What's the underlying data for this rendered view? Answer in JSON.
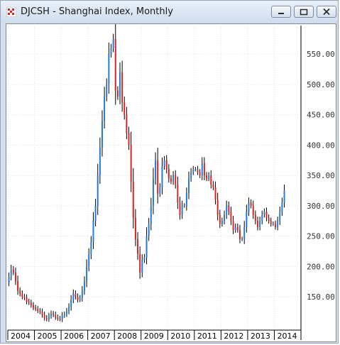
{
  "window": {
    "title": "DJCSH - Shanghai Index, Monthly",
    "controls": [
      "minimize-icon",
      "restore-icon",
      "close-icon"
    ]
  },
  "colors": {
    "up": "#1e78dc",
    "down": "#dc1e1e",
    "axis": "#000000"
  },
  "chart_data": {
    "type": "ohlc",
    "title": "DJCSH - Shanghai Index, Monthly",
    "xlabel": "",
    "ylabel": "",
    "ylim": [
      95,
      597
    ],
    "xlim": [
      2004.0,
      2015.0
    ],
    "y_ticks": [
      150,
      200,
      250,
      300,
      350,
      400,
      450,
      500,
      550
    ],
    "y_tick_labels": [
      "150.00",
      "200.00",
      "250.00",
      "300.00",
      "350.00",
      "400.00",
      "450.00",
      "500.00",
      "550.00"
    ],
    "x_ticks": [
      2004,
      2005,
      2006,
      2007,
      2008,
      2009,
      2010,
      2011,
      2012,
      2013,
      2014
    ],
    "x_tick_labels": [
      "2004",
      "2005",
      "2006",
      "2007",
      "2008",
      "2009",
      "2010",
      "2011",
      "2012",
      "2013",
      "2014"
    ],
    "grid": true,
    "frequency": "monthly",
    "close": [
      183,
      195,
      190,
      176,
      160,
      155,
      150,
      148,
      142,
      140,
      136,
      132,
      130,
      127,
      125,
      120,
      115,
      113,
      118,
      122,
      120,
      116,
      114,
      113,
      119,
      121,
      126,
      133,
      145,
      155,
      150,
      145,
      148,
      160,
      175,
      200,
      220,
      240,
      275,
      300,
      350,
      395,
      440,
      480,
      500,
      550,
      560,
      575,
      490,
      480,
      520,
      470,
      450,
      420,
      400,
      340,
      280,
      245,
      220,
      190,
      210,
      215,
      250,
      270,
      300,
      345,
      375,
      320,
      330,
      365,
      375,
      360,
      345,
      340,
      350,
      335,
      305,
      285,
      300,
      300,
      320,
      345,
      355,
      360,
      360,
      355,
      350,
      370,
      350,
      345,
      350,
      335,
      330,
      310,
      285,
      270,
      275,
      285,
      300,
      290,
      275,
      260,
      265,
      260,
      245,
      245,
      265,
      290,
      305,
      300,
      285,
      275,
      265,
      275,
      285,
      290,
      280,
      275,
      270,
      270,
      265,
      275,
      290,
      305,
      325
    ]
  }
}
